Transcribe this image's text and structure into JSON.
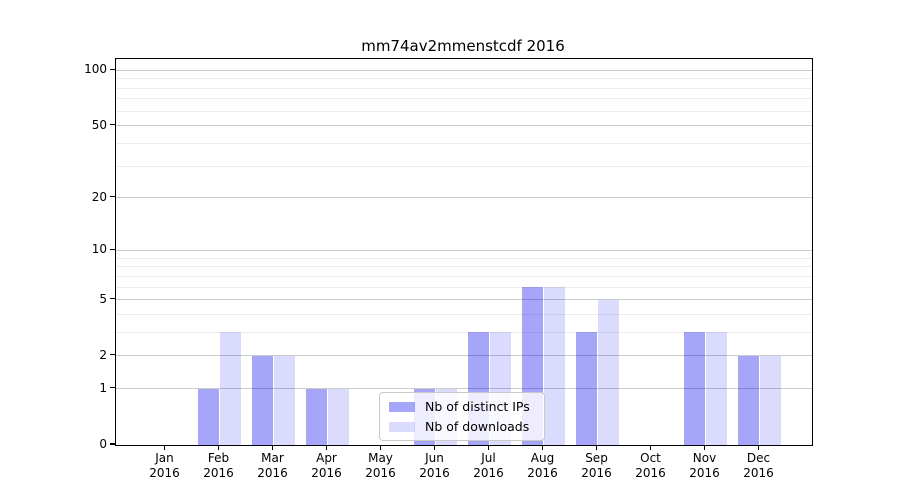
{
  "title": "mm74av2mmenstcdf 2016",
  "legend": {
    "items": [
      {
        "label": "Nb of distinct IPs",
        "color": "rgba(0,0,238,0.35)"
      },
      {
        "label": "Nb of downloads",
        "color": "rgba(0,0,238,0.14)"
      }
    ]
  },
  "colors": {
    "bar_distinct_ips": "rgba(0,0,238,0.35)",
    "bar_downloads": "rgba(0,0,238,0.14)",
    "grid_major": "#cbcbcb",
    "grid_minor": "#ededed",
    "axis": "#000000",
    "legend_border": "#c9c9c9"
  },
  "chart_data": {
    "type": "bar",
    "title": "mm74av2mmenstcdf 2016",
    "categories": [
      "Jan 2016",
      "Feb 2016",
      "Mar 2016",
      "Apr 2016",
      "May 2016",
      "Jun 2016",
      "Jul 2016",
      "Aug 2016",
      "Sep 2016",
      "Oct 2016",
      "Nov 2016",
      "Dec 2016"
    ],
    "series": [
      {
        "name": "Nb of distinct IPs",
        "color": "rgba(0,0,238,0.35)",
        "values": [
          0,
          1,
          2,
          1,
          0,
          1,
          3,
          6,
          3,
          0,
          3,
          2
        ]
      },
      {
        "name": "Nb of downloads",
        "color": "rgba(0,0,238,0.14)",
        "values": [
          0,
          3,
          2,
          1,
          0,
          1,
          3,
          6,
          5,
          0,
          3,
          2
        ]
      }
    ],
    "xlabel": "",
    "ylabel": "",
    "y_scale": "log1p",
    "ylim": [
      0,
      115
    ],
    "y_major_ticks": [
      0,
      1,
      2,
      5,
      10,
      20,
      50,
      100
    ],
    "y_minor_ticks": [
      3,
      4,
      6,
      7,
      8,
      9,
      30,
      40,
      60,
      70,
      80,
      90
    ],
    "grid": true,
    "legend_position": "inside lower center"
  }
}
